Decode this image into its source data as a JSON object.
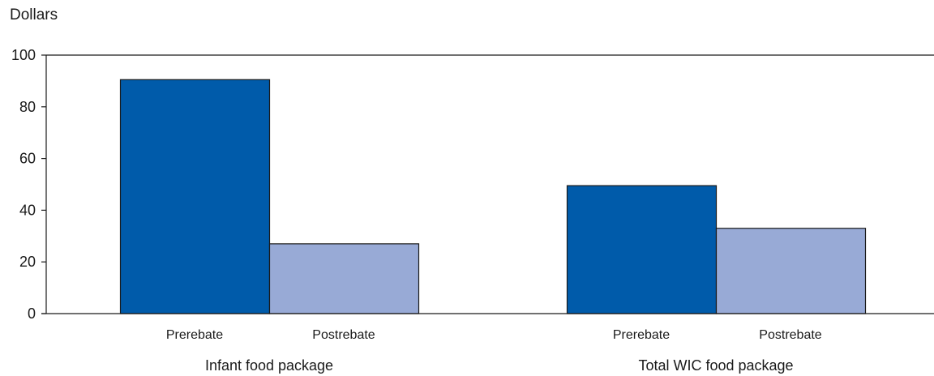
{
  "chart_data": {
    "type": "bar",
    "ylabel": "Dollars",
    "xlabel": "",
    "ylim": [
      0,
      100
    ],
    "yticks": [
      0,
      20,
      40,
      60,
      80,
      100
    ],
    "ytick_labels": [
      "0",
      "20",
      "40",
      "60",
      "80",
      "100"
    ],
    "groups": [
      {
        "label": "Infant food package",
        "bars": [
          {
            "label": "Prerebate",
            "value": 90.5,
            "color": "#005BAA"
          },
          {
            "label": "Postrebate",
            "value": 27.0,
            "color": "#98AAD6"
          }
        ]
      },
      {
        "label": "Total WIC food package",
        "bars": [
          {
            "label": "Prerebate",
            "value": 49.5,
            "color": "#005BAA"
          },
          {
            "label": "Postrebate",
            "value": 33.0,
            "color": "#98AAD6"
          }
        ]
      }
    ],
    "grid": false,
    "legend": "none"
  }
}
